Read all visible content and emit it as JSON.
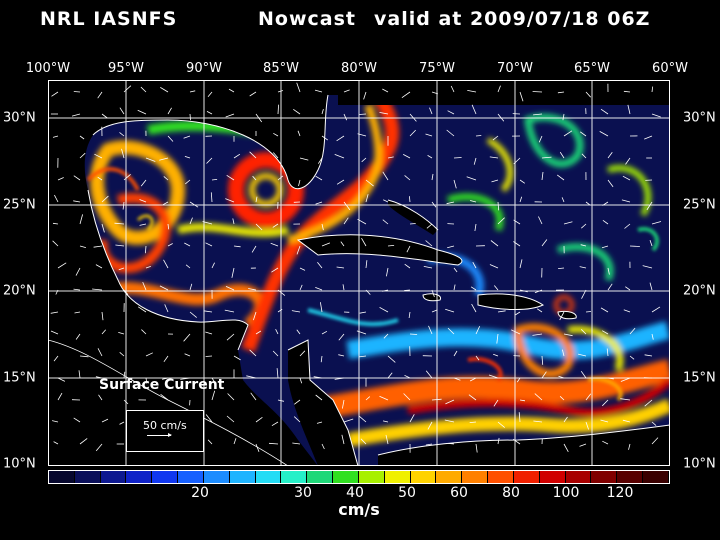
{
  "title": {
    "model": "NRL IASNFS",
    "product": "Nowcast",
    "valid": "valid at 2009/07/18 06Z"
  },
  "lon_labels": [
    "100°W",
    "95°W",
    "90°W",
    "85°W",
    "80°W",
    "75°W",
    "70°W",
    "65°W",
    "60°W"
  ],
  "lat_labels": [
    "30°N",
    "25°N",
    "20°N",
    "15°N",
    "10°N"
  ],
  "map": {
    "extent": {
      "lon": [
        -100,
        -60
      ],
      "lat": [
        10,
        31.5
      ]
    },
    "field": "Surface Current",
    "reference_vector": {
      "label": "50 cm/s",
      "value": 50
    }
  },
  "colorbar": {
    "units": "cm/s",
    "tick_labels": [
      "20",
      "30",
      "40",
      "50",
      "60",
      "80",
      "100",
      "120"
    ],
    "colors": [
      "#06072e",
      "#0a0f5a",
      "#0d1890",
      "#0f22c8",
      "#1037f0",
      "#1660ff",
      "#1c8cff",
      "#1eb4ff",
      "#22dcf5",
      "#25f0c8",
      "#1ed878",
      "#30e020",
      "#a8f000",
      "#f0f000",
      "#ffd200",
      "#ffaa00",
      "#ff8000",
      "#ff5000",
      "#f02000",
      "#d00000",
      "#a80000",
      "#800000",
      "#580000",
      "#3a0000"
    ]
  },
  "colors": {
    "land": "#000000",
    "grid": "#ffffff",
    "coast": "#ffffff",
    "water_background": "#0a1050"
  }
}
